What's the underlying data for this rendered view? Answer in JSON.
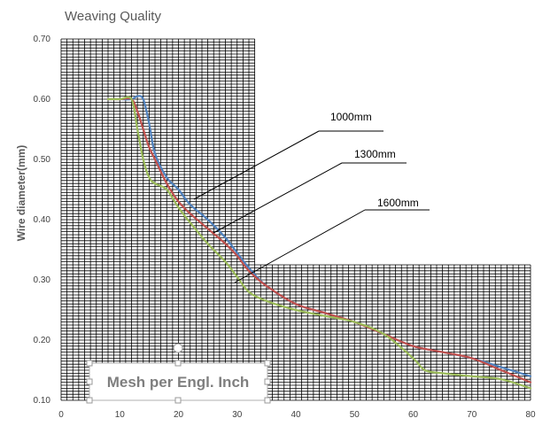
{
  "chart_data": {
    "type": "line",
    "title": "Weaving Quality",
    "ylabel": "Wire diameter(mm)",
    "xlabel": "Mesh per Engl. Inch",
    "xlim": [
      0,
      80
    ],
    "ylim": [
      0.1,
      0.7
    ],
    "x_ticks": [
      "0",
      "10",
      "20",
      "30",
      "40",
      "50",
      "60",
      "70",
      "80"
    ],
    "y_ticks": [
      "0.10",
      "0.20",
      "0.30",
      "0.40",
      "0.50",
      "0.60",
      "0.70"
    ],
    "grid": true,
    "series": [
      {
        "name": "1000mm",
        "color": "#4f81bd",
        "x": [
          8,
          10,
          12,
          13,
          14,
          15,
          16,
          18,
          20,
          22,
          25,
          28,
          30,
          32,
          35,
          40,
          45,
          50,
          55,
          60,
          65,
          70,
          75,
          80
        ],
        "y": [
          0.6,
          0.6,
          0.6,
          0.605,
          0.6,
          0.56,
          0.51,
          0.47,
          0.45,
          0.425,
          0.4,
          0.37,
          0.345,
          0.32,
          0.29,
          0.26,
          0.245,
          0.23,
          0.21,
          0.19,
          0.18,
          0.17,
          0.155,
          0.14
        ]
      },
      {
        "name": "1300mm",
        "color": "#c0504d",
        "x": [
          8,
          10,
          12,
          13,
          14,
          15,
          16,
          18,
          20,
          22,
          25,
          28,
          30,
          32,
          35,
          40,
          45,
          50,
          55,
          60,
          65,
          70,
          75,
          80
        ],
        "y": [
          0.6,
          0.6,
          0.6,
          0.58,
          0.55,
          0.52,
          0.5,
          0.46,
          0.43,
          0.41,
          0.385,
          0.36,
          0.34,
          0.315,
          0.29,
          0.26,
          0.245,
          0.23,
          0.21,
          0.19,
          0.18,
          0.17,
          0.15,
          0.13
        ]
      },
      {
        "name": "1600mm",
        "color": "#9bbb59",
        "x": [
          8,
          10,
          12,
          13,
          14,
          15,
          16,
          18,
          20,
          22,
          25,
          28,
          30,
          32,
          35,
          40,
          45,
          50,
          55,
          60,
          62,
          65,
          70,
          75,
          80
        ],
        "y": [
          0.6,
          0.6,
          0.6,
          0.55,
          0.5,
          0.47,
          0.46,
          0.45,
          0.42,
          0.395,
          0.36,
          0.33,
          0.305,
          0.28,
          0.265,
          0.25,
          0.24,
          0.23,
          0.21,
          0.17,
          0.15,
          0.145,
          0.14,
          0.135,
          0.12
        ]
      }
    ]
  }
}
